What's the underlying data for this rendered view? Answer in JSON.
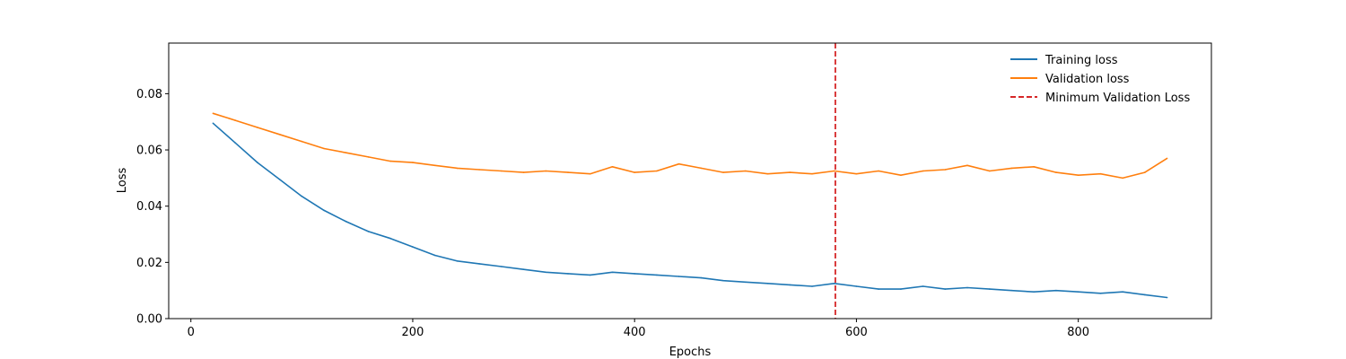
{
  "chart_data": {
    "type": "line",
    "title": "",
    "xlabel": "Epochs",
    "ylabel": "Loss",
    "xlim": [
      -20,
      920
    ],
    "ylim": [
      0,
      0.098
    ],
    "xticks": [
      0,
      200,
      400,
      600,
      800
    ],
    "xtick_labels": [
      "0",
      "200",
      "400",
      "600",
      "800"
    ],
    "yticks": [
      0.0,
      0.02,
      0.04,
      0.06,
      0.08
    ],
    "ytick_labels": [
      "0.00",
      "0.02",
      "0.04",
      "0.06",
      "0.08"
    ],
    "grid": false,
    "legend_position": "top-right",
    "series": [
      {
        "name": "Training loss",
        "color": "#1f77b4",
        "style": "solid",
        "x": [
          20,
          40,
          60,
          80,
          100,
          120,
          140,
          160,
          180,
          200,
          220,
          240,
          260,
          280,
          300,
          320,
          340,
          360,
          380,
          400,
          420,
          440,
          460,
          480,
          500,
          520,
          540,
          560,
          580,
          600,
          620,
          640,
          660,
          680,
          700,
          720,
          740,
          760,
          780,
          800,
          820,
          840,
          860,
          880
        ],
        "y": [
          0.0695,
          0.0625,
          0.0555,
          0.0495,
          0.0435,
          0.0385,
          0.0345,
          0.031,
          0.0285,
          0.0255,
          0.0225,
          0.0205,
          0.0195,
          0.0185,
          0.0175,
          0.0165,
          0.016,
          0.0155,
          0.0165,
          0.016,
          0.0155,
          0.015,
          0.0145,
          0.0135,
          0.013,
          0.0125,
          0.012,
          0.0115,
          0.0125,
          0.0115,
          0.0105,
          0.0105,
          0.0115,
          0.0105,
          0.011,
          0.0105,
          0.01,
          0.0095,
          0.01,
          0.0095,
          0.009,
          0.0095,
          0.0085,
          0.0075
        ]
      },
      {
        "name": "Validation loss",
        "color": "#ff7f0e",
        "style": "solid",
        "x": [
          20,
          40,
          60,
          80,
          100,
          120,
          140,
          160,
          180,
          200,
          220,
          240,
          260,
          280,
          300,
          320,
          340,
          360,
          380,
          400,
          420,
          440,
          460,
          480,
          500,
          520,
          540,
          560,
          580,
          600,
          620,
          640,
          660,
          680,
          700,
          720,
          740,
          760,
          780,
          800,
          820,
          840,
          860,
          880
        ],
        "y": [
          0.073,
          0.0705,
          0.068,
          0.0655,
          0.063,
          0.0605,
          0.059,
          0.0575,
          0.056,
          0.0555,
          0.0545,
          0.0535,
          0.053,
          0.0525,
          0.052,
          0.0525,
          0.052,
          0.0515,
          0.054,
          0.052,
          0.0525,
          0.055,
          0.0535,
          0.052,
          0.0525,
          0.0515,
          0.052,
          0.0515,
          0.0525,
          0.0515,
          0.0525,
          0.051,
          0.0525,
          0.053,
          0.0545,
          0.0525,
          0.0535,
          0.054,
          0.052,
          0.051,
          0.0515,
          0.05,
          0.052,
          0.057
        ]
      }
    ],
    "vlines": [
      {
        "name": "Minimum Validation Loss",
        "x": 581,
        "color": "#d62728",
        "style": "dashed"
      }
    ]
  }
}
